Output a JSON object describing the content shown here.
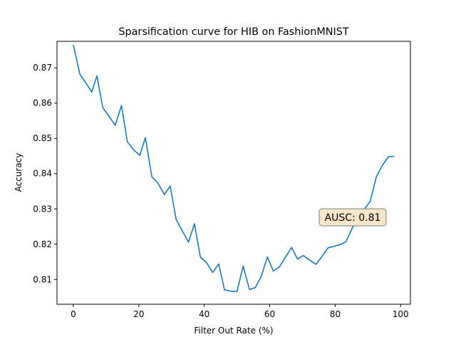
{
  "chart_data": {
    "type": "line",
    "title": "Sparsification curve for HIB on FashionMNIST",
    "xlabel": "Filter Out Rate (%)",
    "ylabel": "Accuracy",
    "xlim": [
      -5,
      103
    ],
    "ylim": [
      0.803,
      0.8775
    ],
    "xticks": [
      0,
      20,
      40,
      60,
      80,
      100
    ],
    "yticks": [
      0.81,
      0.82,
      0.83,
      0.84,
      0.85,
      0.86,
      0.87
    ],
    "xtick_labels": [
      "0",
      "20",
      "40",
      "60",
      "80",
      "100"
    ],
    "ytick_labels": [
      "0.81",
      "0.82",
      "0.83",
      "0.84",
      "0.85",
      "0.86",
      "0.87"
    ],
    "grid": false,
    "line_color": "#1f77b4",
    "series": [
      {
        "x": [
          0,
          2,
          4,
          5.6,
          7.2,
          9,
          11,
          12.8,
          14.7,
          16.5,
          18.5,
          20.3,
          22,
          24,
          25.8,
          27.8,
          29.6,
          31.4,
          33.3,
          35.2,
          37,
          38.8,
          40.7,
          42.6,
          44.4,
          46.2,
          48.1,
          50,
          51.9,
          53.8,
          55.6,
          57.4,
          59.3,
          61.1,
          63,
          64.8,
          66.7,
          68.5,
          70.3,
          72.2,
          74.1,
          75.9,
          77.8,
          79.6,
          81.5,
          83.3,
          85.2,
          87,
          88.9,
          90.7,
          92.6,
          94.4,
          96.3,
          98.1
        ],
        "y": [
          0.8765,
          0.8682,
          0.8655,
          0.8631,
          0.8677,
          0.8587,
          0.8561,
          0.8537,
          0.8593,
          0.8491,
          0.8467,
          0.8452,
          0.8502,
          0.8391,
          0.8374,
          0.8341,
          0.8365,
          0.827,
          0.8238,
          0.8206,
          0.8258,
          0.8164,
          0.8148,
          0.812,
          0.8144,
          0.8071,
          0.8067,
          0.8066,
          0.8138,
          0.8072,
          0.8077,
          0.8109,
          0.8164,
          0.8124,
          0.8136,
          0.8163,
          0.8191,
          0.8158,
          0.8168,
          0.8155,
          0.8143,
          0.8164,
          0.819,
          0.8194,
          0.8199,
          0.8207,
          0.8245,
          0.8281,
          0.8299,
          0.8321,
          0.8391,
          0.8423,
          0.8448,
          0.8449
        ]
      }
    ],
    "annotation": {
      "text": "AUSC: 0.81",
      "position": "right",
      "facecolor": "#f5e6c8",
      "edgecolor": "#7f7f7f"
    }
  }
}
